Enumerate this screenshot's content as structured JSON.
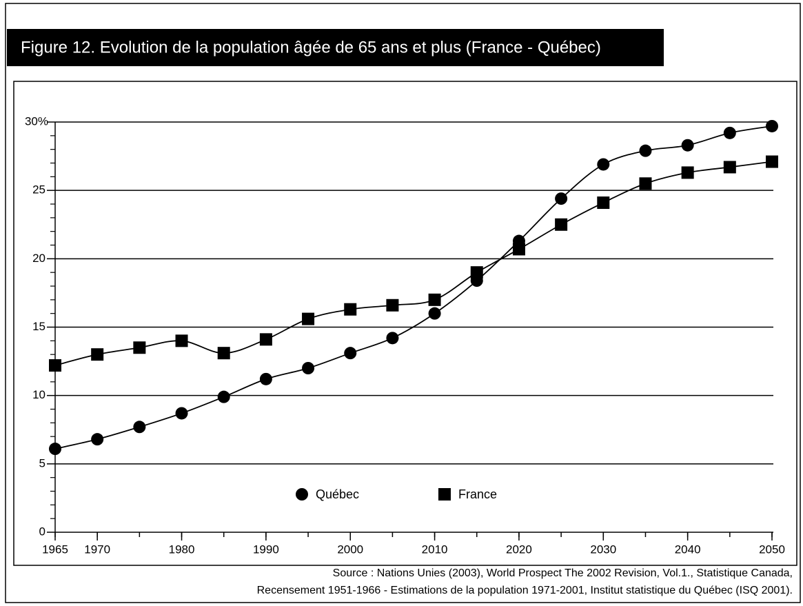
{
  "chart_data": {
    "type": "line",
    "title": "Figure 12. Evolution de la population âgée de 65 ans et plus (France - Québec)",
    "x": [
      1965,
      1970,
      1975,
      1980,
      1985,
      1990,
      1995,
      2000,
      2005,
      2010,
      2015,
      2020,
      2025,
      2030,
      2035,
      2040,
      2045,
      2050
    ],
    "series": [
      {
        "name": "Québec",
        "color": "#000000",
        "marker": "circle",
        "values": [
          6.1,
          6.8,
          7.7,
          8.7,
          9.9,
          11.2,
          12.0,
          13.1,
          14.2,
          16.0,
          18.4,
          21.3,
          24.4,
          26.9,
          27.9,
          28.3,
          29.2,
          29.7
        ]
      },
      {
        "name": "France",
        "color": "#000000",
        "marker": "square",
        "values": [
          12.2,
          13.0,
          13.5,
          14.0,
          13.1,
          14.1,
          15.6,
          16.3,
          16.6,
          17.0,
          19.0,
          20.7,
          22.5,
          24.1,
          25.5,
          26.3,
          26.7,
          27.1
        ]
      }
    ],
    "xlim": [
      1965,
      2050
    ],
    "xticks": [
      1965,
      1970,
      1980,
      1990,
      2000,
      2010,
      2020,
      2030,
      2040,
      2050
    ],
    "ylim": [
      0,
      30
    ],
    "yticks": [
      0,
      5,
      10,
      15,
      20,
      25,
      {
        "value": 30,
        "label": "30%"
      }
    ],
    "grid": true,
    "source": [
      "Source : Nations Unies (2003), World Prospect The 2002 Revision, Vol.1., Statistique Canada,",
      "Recensement 1951-1966 - Estimations de la population 1971-2001, Institut statistique du Québec (ISQ 2001)."
    ]
  }
}
